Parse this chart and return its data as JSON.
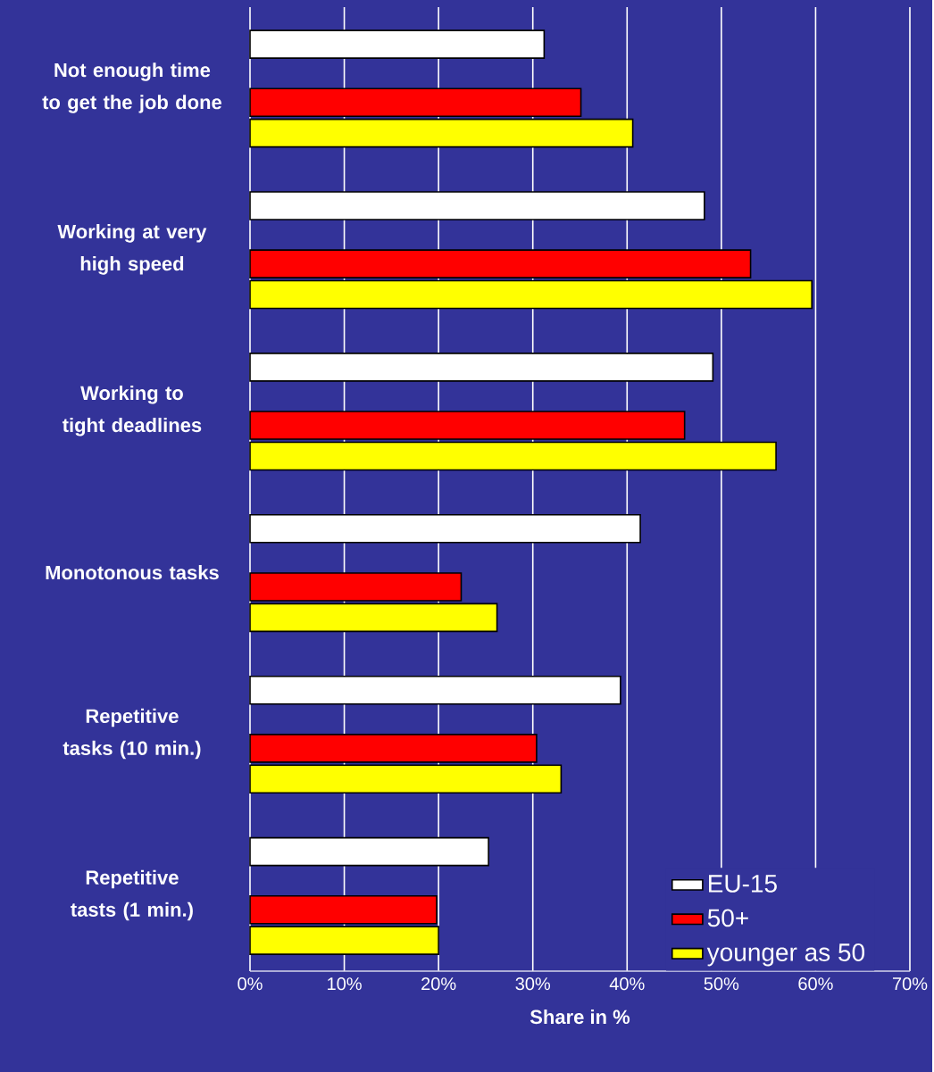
{
  "chart_data": {
    "type": "bar",
    "orientation": "horizontal",
    "xlabel": "Share in %",
    "categories": [
      "Not enough time to get the job done",
      "Working at very high speed",
      "Working to tight deadlines",
      "Monotonous tasks",
      "Repetitive tasks (10 min.)",
      "Repetitive tasts (1 min.)"
    ],
    "series": [
      {
        "name": "EU-15",
        "color": "#ffffff",
        "values": [
          31.2,
          48.2,
          49.1,
          41.4,
          39.3,
          25.3
        ]
      },
      {
        "name": "50+",
        "color": "#ff0000",
        "values": [
          35.1,
          53.1,
          46.1,
          22.4,
          30.4,
          19.8
        ]
      },
      {
        "name": "younger as 50",
        "color": "#ffff00",
        "values": [
          40.6,
          59.6,
          55.8,
          26.2,
          33.0,
          20.0
        ]
      }
    ],
    "xlim": [
      0,
      70
    ],
    "xticks": [
      {
        "value": 0,
        "label": "0%"
      },
      {
        "value": 10,
        "label": "10%"
      },
      {
        "value": 20,
        "label": "20%"
      },
      {
        "value": 30,
        "label": "30%"
      },
      {
        "value": 40,
        "label": "40%"
      },
      {
        "value": 50,
        "label": "50%"
      },
      {
        "value": 60,
        "label": "60%"
      },
      {
        "value": 70,
        "label": "70%"
      }
    ],
    "grid": "x",
    "legend": "bottom right"
  }
}
